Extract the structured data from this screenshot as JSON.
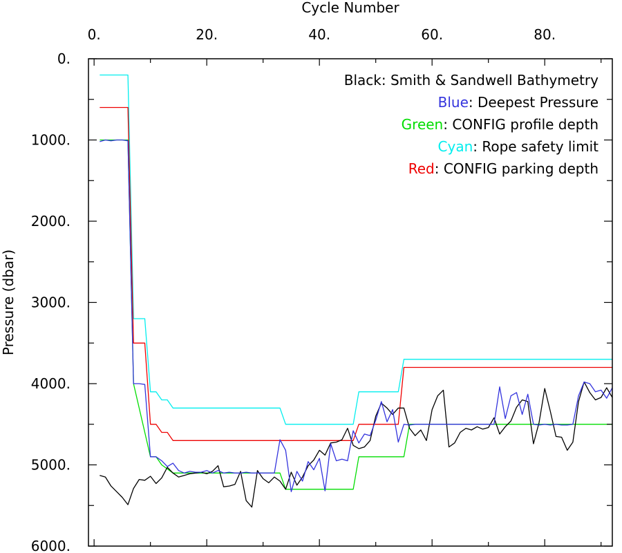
{
  "chart_data": {
    "type": "line",
    "xlabel": "Cycle Number",
    "ylabel": "Pressure (dbar)",
    "xlim": [
      -1,
      92
    ],
    "ylim": [
      0,
      6000
    ],
    "y_inverted": true,
    "x_axis_position": "top",
    "x_ticks": [
      0,
      20,
      40,
      60,
      80
    ],
    "x_tick_labels": [
      "0.",
      "20.",
      "40.",
      "60.",
      "80."
    ],
    "y_ticks": [
      0,
      1000,
      2000,
      3000,
      4000,
      5000,
      6000
    ],
    "y_tick_labels": [
      "0.",
      "1000.",
      "2000.",
      "3000.",
      "4000.",
      "5000.",
      "6000."
    ],
    "grid": false,
    "legend_position": "top-right",
    "legend": [
      {
        "label": "Black",
        "rest": ": Smith & Sandwell Bathymetry",
        "color": "#000000"
      },
      {
        "label": "Blue",
        "rest": ": Deepest Pressure",
        "color": "#3333dd"
      },
      {
        "label": "Green",
        "rest": ": CONFIG profile depth",
        "color": "#00dd00"
      },
      {
        "label": "Cyan",
        "rest": ": Rope safety limit",
        "color": "#00eeee"
      },
      {
        "label": "Red",
        "rest": ": CONFIG parking depth",
        "color": "#ee0000"
      }
    ],
    "series": [
      {
        "key": "bathymetry",
        "color": "#000000",
        "step": false,
        "points": [
          [
            1,
            5130
          ],
          [
            2,
            5150
          ],
          [
            3,
            5260
          ],
          [
            4,
            5330
          ],
          [
            5,
            5400
          ],
          [
            6,
            5490
          ],
          [
            7,
            5290
          ],
          [
            8,
            5180
          ],
          [
            9,
            5190
          ],
          [
            10,
            5140
          ],
          [
            11,
            5230
          ],
          [
            12,
            5160
          ],
          [
            13,
            5030
          ],
          [
            14,
            5100
          ],
          [
            15,
            5150
          ],
          [
            16,
            5130
          ],
          [
            17,
            5110
          ],
          [
            18,
            5100
          ],
          [
            19,
            5090
          ],
          [
            20,
            5110
          ],
          [
            21,
            5080
          ],
          [
            22,
            5010
          ],
          [
            23,
            5270
          ],
          [
            24,
            5260
          ],
          [
            25,
            5240
          ],
          [
            26,
            5080
          ],
          [
            27,
            5440
          ],
          [
            28,
            5520
          ],
          [
            29,
            5070
          ],
          [
            30,
            5170
          ],
          [
            31,
            5220
          ],
          [
            32,
            5150
          ],
          [
            33,
            5200
          ],
          [
            34,
            5300
          ],
          [
            35,
            5090
          ],
          [
            36,
            5250
          ],
          [
            37,
            5150
          ],
          [
            38,
            5010
          ],
          [
            39,
            4940
          ],
          [
            40,
            4820
          ],
          [
            41,
            4880
          ],
          [
            42,
            4730
          ],
          [
            43,
            4720
          ],
          [
            44,
            4690
          ],
          [
            45,
            4550
          ],
          [
            46,
            4760
          ],
          [
            47,
            4800
          ],
          [
            48,
            4780
          ],
          [
            49,
            4700
          ],
          [
            50,
            4400
          ],
          [
            51,
            4240
          ],
          [
            52,
            4300
          ],
          [
            53,
            4380
          ],
          [
            54,
            4300
          ],
          [
            55,
            4300
          ],
          [
            56,
            4550
          ],
          [
            57,
            4640
          ],
          [
            58,
            4570
          ],
          [
            59,
            4700
          ],
          [
            60,
            4320
          ],
          [
            61,
            4150
          ],
          [
            62,
            4080
          ],
          [
            63,
            4780
          ],
          [
            64,
            4730
          ],
          [
            65,
            4600
          ],
          [
            66,
            4550
          ],
          [
            67,
            4570
          ],
          [
            68,
            4530
          ],
          [
            69,
            4560
          ],
          [
            70,
            4540
          ],
          [
            71,
            4420
          ],
          [
            72,
            4620
          ],
          [
            73,
            4530
          ],
          [
            74,
            4460
          ],
          [
            75,
            4290
          ],
          [
            76,
            4200
          ],
          [
            77,
            4220
          ],
          [
            78,
            4740
          ],
          [
            79,
            4480
          ],
          [
            80,
            4060
          ],
          [
            81,
            4340
          ],
          [
            82,
            4650
          ],
          [
            83,
            4660
          ],
          [
            84,
            4820
          ],
          [
            85,
            4720
          ],
          [
            86,
            4220
          ],
          [
            87,
            3980
          ],
          [
            88,
            4110
          ],
          [
            89,
            4200
          ],
          [
            90,
            4170
          ],
          [
            91,
            4050
          ],
          [
            92,
            4170
          ]
        ]
      },
      {
        "key": "deepest_pressure",
        "color": "#3333dd",
        "step": false,
        "points": [
          [
            1,
            1020
          ],
          [
            2,
            1000
          ],
          [
            3,
            1010
          ],
          [
            4,
            1000
          ],
          [
            5,
            1000
          ],
          [
            6,
            1010
          ],
          [
            7,
            4000
          ],
          [
            8,
            4000
          ],
          [
            9,
            4010
          ],
          [
            10,
            4900
          ],
          [
            11,
            4900
          ],
          [
            12,
            4950
          ],
          [
            13,
            5020
          ],
          [
            14,
            4980
          ],
          [
            15,
            5070
          ],
          [
            16,
            5100
          ],
          [
            17,
            5080
          ],
          [
            18,
            5090
          ],
          [
            19,
            5090
          ],
          [
            20,
            5070
          ],
          [
            21,
            5100
          ],
          [
            22,
            5070
          ],
          [
            23,
            5100
          ],
          [
            24,
            5090
          ],
          [
            25,
            5100
          ],
          [
            26,
            5100
          ],
          [
            27,
            5090
          ],
          [
            28,
            5100
          ],
          [
            29,
            5100
          ],
          [
            30,
            5100
          ],
          [
            31,
            5100
          ],
          [
            32,
            5100
          ],
          [
            33,
            4690
          ],
          [
            34,
            4820
          ],
          [
            35,
            5330
          ],
          [
            36,
            5080
          ],
          [
            37,
            5200
          ],
          [
            38,
            4960
          ],
          [
            39,
            5060
          ],
          [
            40,
            4920
          ],
          [
            41,
            5320
          ],
          [
            42,
            4740
          ],
          [
            43,
            4950
          ],
          [
            44,
            4930
          ],
          [
            45,
            4950
          ],
          [
            46,
            4580
          ],
          [
            47,
            4730
          ],
          [
            48,
            4620
          ],
          [
            49,
            4640
          ],
          [
            50,
            4450
          ],
          [
            51,
            4220
          ],
          [
            52,
            4470
          ],
          [
            53,
            4320
          ],
          [
            54,
            4720
          ],
          [
            55,
            4500
          ],
          [
            56,
            4510
          ],
          [
            57,
            4500
          ],
          [
            58,
            4500
          ],
          [
            59,
            4500
          ],
          [
            60,
            4500
          ],
          [
            61,
            4500
          ],
          [
            62,
            4500
          ],
          [
            63,
            4500
          ],
          [
            64,
            4500
          ],
          [
            65,
            4500
          ],
          [
            66,
            4500
          ],
          [
            67,
            4500
          ],
          [
            68,
            4500
          ],
          [
            69,
            4500
          ],
          [
            70,
            4500
          ],
          [
            71,
            4500
          ],
          [
            72,
            4040
          ],
          [
            73,
            4430
          ],
          [
            74,
            4150
          ],
          [
            75,
            4110
          ],
          [
            76,
            4380
          ],
          [
            77,
            4130
          ],
          [
            78,
            4500
          ],
          [
            79,
            4510
          ],
          [
            80,
            4500
          ],
          [
            81,
            4510
          ],
          [
            82,
            4500
          ],
          [
            83,
            4510
          ],
          [
            84,
            4510
          ],
          [
            85,
            4500
          ],
          [
            86,
            4150
          ],
          [
            87,
            3980
          ],
          [
            88,
            4000
          ],
          [
            89,
            4100
          ],
          [
            90,
            4080
          ],
          [
            91,
            4180
          ],
          [
            92,
            4050
          ]
        ]
      },
      {
        "key": "profile_depth",
        "color": "#00dd00",
        "step": true,
        "points": [
          [
            1,
            1000
          ],
          [
            6,
            1000
          ],
          [
            7,
            4000
          ],
          [
            10,
            4900
          ],
          [
            11,
            4900
          ],
          [
            12,
            5000
          ],
          [
            13,
            5050
          ],
          [
            14,
            5100
          ],
          [
            33,
            5100
          ],
          [
            34,
            5300
          ],
          [
            46,
            5300
          ],
          [
            47,
            4900
          ],
          [
            55,
            4900
          ],
          [
            56,
            4500
          ],
          [
            92,
            4500
          ]
        ]
      },
      {
        "key": "rope_safety_limit",
        "color": "#00eeee",
        "step": true,
        "points": [
          [
            1,
            200
          ],
          [
            6,
            200
          ],
          [
            7,
            3200
          ],
          [
            9,
            3200
          ],
          [
            10,
            4100
          ],
          [
            11,
            4100
          ],
          [
            12,
            4200
          ],
          [
            13,
            4200
          ],
          [
            14,
            4300
          ],
          [
            33,
            4300
          ],
          [
            34,
            4500
          ],
          [
            46,
            4500
          ],
          [
            47,
            4100
          ],
          [
            54,
            4100
          ],
          [
            55,
            3700
          ],
          [
            92,
            3700
          ]
        ]
      },
      {
        "key": "parking_depth",
        "color": "#ee0000",
        "step": true,
        "points": [
          [
            1,
            600
          ],
          [
            6,
            600
          ],
          [
            7,
            3500
          ],
          [
            9,
            3500
          ],
          [
            10,
            4500
          ],
          [
            11,
            4500
          ],
          [
            12,
            4600
          ],
          [
            13,
            4600
          ],
          [
            14,
            4700
          ],
          [
            46,
            4700
          ],
          [
            47,
            4500
          ],
          [
            54,
            4500
          ],
          [
            55,
            3800
          ],
          [
            92,
            3800
          ]
        ]
      }
    ]
  }
}
